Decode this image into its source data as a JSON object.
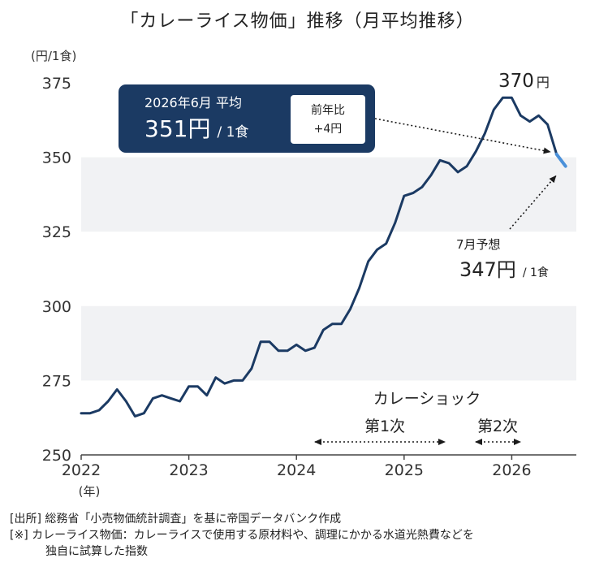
{
  "title": "「カレーライス物価」推移（月平均推移）",
  "chart_data": {
    "type": "line",
    "title": "「カレーライス物価」推移（月平均推移）",
    "ylabel": "(円/1食)",
    "xlabel": "(年)",
    "ylim": [
      250,
      375
    ],
    "yticks": [
      250,
      275,
      300,
      325,
      350,
      375
    ],
    "xlim": [
      2022,
      2026.6
    ],
    "xticks": [
      2022,
      2023,
      2024,
      2025,
      2026
    ],
    "bands": [
      [
        275,
        300
      ],
      [
        325,
        350
      ]
    ],
    "series": [
      {
        "style": "actual",
        "color": "#1b3a63",
        "x": [
          2022.0,
          2022.083,
          2022.167,
          2022.25,
          2022.333,
          2022.417,
          2022.5,
          2022.583,
          2022.667,
          2022.75,
          2022.833,
          2022.917,
          2023.0,
          2023.083,
          2023.167,
          2023.25,
          2023.333,
          2023.417,
          2023.5,
          2023.583,
          2023.667,
          2023.75,
          2023.833,
          2023.917,
          2024.0,
          2024.083,
          2024.167,
          2024.25,
          2024.333,
          2024.417,
          2024.5,
          2024.583,
          2024.667,
          2024.75,
          2024.833,
          2024.917,
          2025.0,
          2025.083,
          2025.167,
          2025.25,
          2025.333,
          2025.417,
          2025.5,
          2025.583,
          2025.667,
          2025.75,
          2025.833,
          2025.917,
          2026.0,
          2026.083,
          2026.167,
          2026.25,
          2026.333,
          2026.417
        ],
        "y": [
          264,
          264,
          265,
          268,
          272,
          268,
          263,
          264,
          269,
          270,
          269,
          268,
          273,
          273,
          270,
          276,
          274,
          275,
          275,
          279,
          288,
          288,
          285,
          285,
          287,
          285,
          286,
          292,
          294,
          294,
          299,
          306,
          315,
          319,
          321,
          328,
          337,
          338,
          340,
          344,
          349,
          348,
          345,
          347,
          352,
          358,
          366,
          370,
          370,
          364,
          362,
          364,
          361,
          351
        ]
      },
      {
        "style": "forecast",
        "color": "#4a90d9",
        "x": [
          2026.417,
          2026.5
        ],
        "y": [
          351,
          347
        ]
      }
    ],
    "annotations": {
      "peak": {
        "value": "370",
        "unit": "円"
      },
      "june_box": {
        "title": "2026年6月  平均",
        "value": "351円",
        "unit": "/ 1食",
        "yoy_label": "前年比",
        "yoy_value": "+4円"
      },
      "forecast": {
        "label": "7月予想",
        "value": "347円",
        "unit": "/ 1食"
      },
      "shock": {
        "title": "カレーショック",
        "first": "第1次",
        "second": "第2次"
      }
    }
  },
  "notes": {
    "source": "[出所]  総務省「小売物価統計調査」を基に帝国データバンク作成",
    "note_line1": "[※]  カレーライス物価：カレーライスで使用する原材料や、調理にかかる水道光熱費などを",
    "note_line2": "独自に試算した指数"
  }
}
